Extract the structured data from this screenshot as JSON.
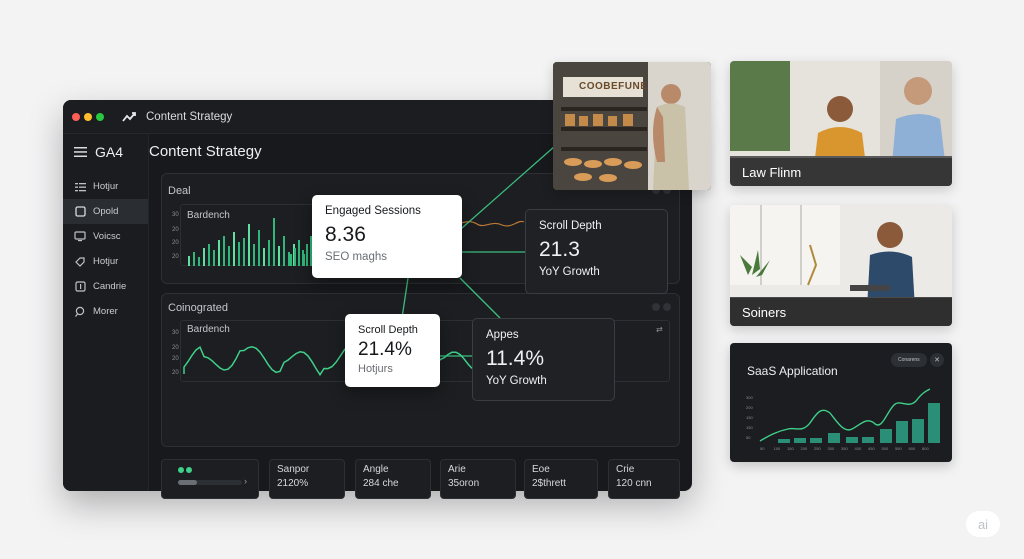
{
  "window": {
    "title": "Content Strategy",
    "traffic_lights": [
      "#ff5f57",
      "#febc2e",
      "#28c840"
    ]
  },
  "sidebar": {
    "brand": "GA4",
    "items": [
      {
        "label": "Hotjur",
        "icon": "bars-icon"
      },
      {
        "label": "Opold",
        "icon": "square-icon"
      },
      {
        "label": "Voicsc",
        "icon": "screen-icon"
      },
      {
        "label": "Hotjur",
        "icon": "tag-icon"
      },
      {
        "label": "Candrie",
        "icon": "info-icon"
      },
      {
        "label": "Morer",
        "icon": "search-icon"
      }
    ]
  },
  "main": {
    "title": "Content Strategy",
    "panel1": {
      "label": "Deal",
      "inner_label": "Bardench",
      "ticks": [
        "30",
        "20",
        "20",
        "20"
      ]
    },
    "panel2": {
      "label": "Coinograted",
      "inner_label": "Bardench",
      "ticks": [
        "30",
        "20",
        "20",
        "20"
      ]
    }
  },
  "cards": [
    {
      "title": "Engaged Sessions",
      "value": "8.36",
      "sub": "SEO maghs"
    },
    {
      "title": "Scroll Depth",
      "value": "21.3",
      "sub": "YoY Growth"
    },
    {
      "title": "Scroll Depth",
      "value": "21.4%",
      "sub": "Hotjurs"
    },
    {
      "title": "Appes",
      "value": "11.4%",
      "sub": "YoY Growth"
    }
  ],
  "metrics": [
    {
      "label": "Sanpor",
      "value": "2120%"
    },
    {
      "label": "Angle",
      "value": "284 che"
    },
    {
      "label": "Arie",
      "value": "35oron"
    },
    {
      "label": "Eoe",
      "value": "2$thrett"
    },
    {
      "label": "Crie",
      "value": "120 cnn"
    }
  ],
  "photos": [
    {
      "sign": "COOBEFUNE",
      "caption": ""
    },
    {
      "caption": "Law Flinm"
    },
    {
      "caption": "Soiners"
    }
  ],
  "saas": {
    "title": "SaaS Application",
    "button": "Conarens",
    "accent": "#3fd08a"
  },
  "accent": "#3fd08a",
  "badge": "ai"
}
